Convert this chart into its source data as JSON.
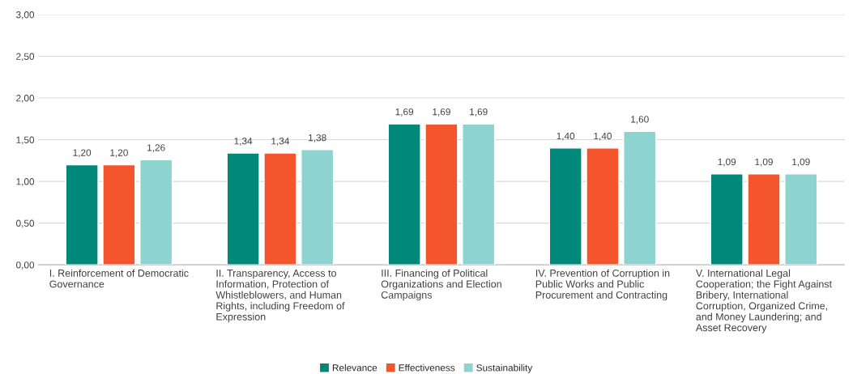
{
  "chart_data": {
    "type": "bar",
    "categories": [
      "I. Reinforcement of Democratic\nGovernance",
      "II. Transparency, Access to\nInformation, Protection of\nWhistleblowers, and Human\nRights, including Freedom of\nExpression",
      "III. Financing of Political\nOrganizations and Election\nCampaigns",
      "IV. Prevention of Corruption in\nPublic Works and Public\nProcurement and Contracting",
      "V. International Legal\nCooperation; the Fight Against\nBribery, International\nCorruption, Organized Crime,\nand Money Laundering; and\nAsset Recovery"
    ],
    "series": [
      {
        "name": "Relevance",
        "color": "#00897b",
        "values": [
          1.2,
          1.34,
          1.69,
          1.4,
          1.09
        ],
        "value_labels": [
          "1,20",
          "1,34",
          "1,69",
          "1,40",
          "1,09"
        ]
      },
      {
        "name": "Effectiveness",
        "color": "#f4552d",
        "values": [
          1.2,
          1.34,
          1.69,
          1.4,
          1.09
        ],
        "value_labels": [
          "1,20",
          "1,34",
          "1,69",
          "1,40",
          "1,09"
        ]
      },
      {
        "name": "Sustainability",
        "color": "#8dd3cf",
        "values": [
          1.26,
          1.38,
          1.69,
          1.6,
          1.09
        ],
        "value_labels": [
          "1,26",
          "1,38",
          "1,69",
          "1,60",
          "1,09"
        ]
      }
    ],
    "ylim": [
      0,
      3
    ],
    "yticks": [
      {
        "value": 0,
        "label": "0,00"
      },
      {
        "value": 0.5,
        "label": "0,50"
      },
      {
        "value": 1,
        "label": "1,00"
      },
      {
        "value": 1.5,
        "label": "1,50"
      },
      {
        "value": 2,
        "label": "2,00"
      },
      {
        "value": 2.5,
        "label": "2,50"
      },
      {
        "value": 3,
        "label": "3,00"
      }
    ],
    "grid": "y",
    "legend": "bottom"
  }
}
